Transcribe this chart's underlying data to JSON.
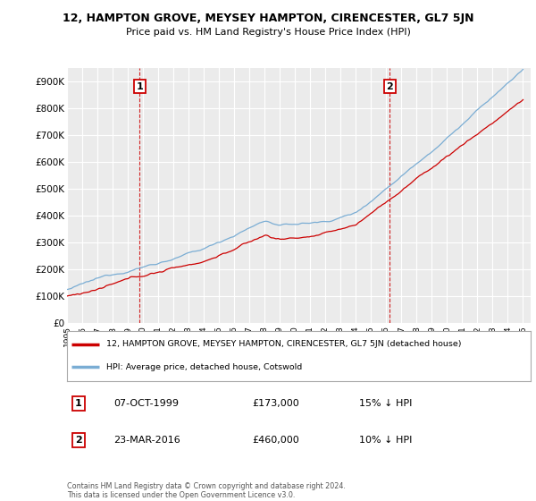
{
  "title": "12, HAMPTON GROVE, MEYSEY HAMPTON, CIRENCESTER, GL7 5JN",
  "subtitle": "Price paid vs. HM Land Registry's House Price Index (HPI)",
  "ylabel_ticks": [
    "£0",
    "£100K",
    "£200K",
    "£300K",
    "£400K",
    "£500K",
    "£600K",
    "£700K",
    "£800K",
    "£900K"
  ],
  "ytick_values": [
    0,
    100000,
    200000,
    300000,
    400000,
    500000,
    600000,
    700000,
    800000,
    900000
  ],
  "ylim": [
    0,
    950000
  ],
  "xlim_start": 1995.0,
  "xlim_end": 2025.5,
  "sale1_date": 1999.77,
  "sale1_price": 173000,
  "sale1_label": "1",
  "sale2_date": 2016.23,
  "sale2_price": 460000,
  "sale2_label": "2",
  "property_line_color": "#cc0000",
  "hpi_line_color": "#7aadd4",
  "vline_color": "#cc0000",
  "background_color": "#ffffff",
  "plot_bg_color": "#ebebeb",
  "grid_color": "#ffffff",
  "legend_property": "12, HAMPTON GROVE, MEYSEY HAMPTON, CIRENCESTER, GL7 5JN (detached house)",
  "legend_hpi": "HPI: Average price, detached house, Cotswold",
  "annotation1_date": "07-OCT-1999",
  "annotation1_price": "£173,000",
  "annotation1_hpi": "15% ↓ HPI",
  "annotation2_date": "23-MAR-2016",
  "annotation2_price": "£460,000",
  "annotation2_hpi": "10% ↓ HPI",
  "footer": "Contains HM Land Registry data © Crown copyright and database right 2024.\nThis data is licensed under the Open Government Licence v3.0."
}
